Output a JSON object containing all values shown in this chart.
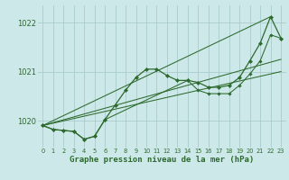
{
  "bg_color": "#cce8e8",
  "grid_color": "#aacccc",
  "line_color": "#2d6a2d",
  "xlim": [
    -0.5,
    23.5
  ],
  "ylim": [
    1019.45,
    1022.35
  ],
  "yticks": [
    1020,
    1021,
    1022
  ],
  "xticks": [
    0,
    1,
    2,
    3,
    4,
    5,
    6,
    7,
    8,
    9,
    10,
    11,
    12,
    13,
    14,
    15,
    16,
    17,
    18,
    19,
    20,
    21,
    22,
    23
  ],
  "xlabel": "Graphe pression niveau de la mer (hPa)",
  "series1_x": [
    0,
    1,
    2,
    3,
    4,
    5,
    6,
    7,
    8,
    9,
    10,
    11,
    12,
    13,
    14,
    15,
    16,
    17,
    18,
    19,
    20,
    21,
    22,
    23
  ],
  "series1_y": [
    1019.9,
    1019.82,
    1019.8,
    1019.78,
    1019.62,
    1019.68,
    1020.02,
    1020.32,
    1020.62,
    1020.88,
    1021.05,
    1021.05,
    1020.92,
    1020.82,
    1020.82,
    1020.78,
    1020.68,
    1020.68,
    1020.72,
    1020.88,
    1021.22,
    1021.58,
    1022.12,
    1021.68
  ],
  "series2_x": [
    0,
    1,
    2,
    3,
    4,
    5,
    6,
    14,
    15,
    16,
    17,
    18,
    19,
    20,
    21,
    22,
    23
  ],
  "series2_y": [
    1019.9,
    1019.82,
    1019.8,
    1019.78,
    1019.62,
    1019.68,
    1020.02,
    1020.82,
    1020.62,
    1020.55,
    1020.55,
    1020.55,
    1020.72,
    1020.95,
    1021.22,
    1021.75,
    1021.68
  ],
  "trend1_x": [
    0,
    22
  ],
  "trend1_y": [
    1019.9,
    1022.12
  ],
  "trend2_x": [
    0,
    23
  ],
  "trend2_y": [
    1019.9,
    1021.25
  ],
  "trend3_x": [
    0,
    23
  ],
  "trend3_y": [
    1019.9,
    1021.0
  ]
}
